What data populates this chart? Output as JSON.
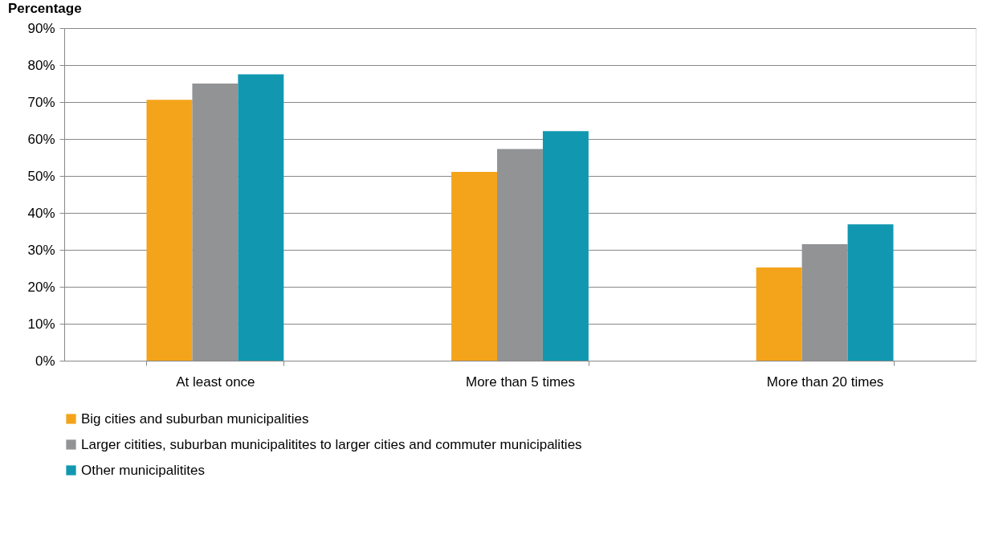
{
  "chart_data": {
    "type": "bar",
    "title": "Percentage",
    "categories": [
      "At least once",
      "More than 5 times",
      "More than 20 times"
    ],
    "series": [
      {
        "name": "Big cities and suburban municipalities",
        "color": "#f4a41a",
        "values": [
          70.6,
          51.1,
          25.2
        ]
      },
      {
        "name": "Larger citities, suburban municipalitites to larger cities and commuter municipalities",
        "color": "#929395",
        "values": [
          75,
          57.3,
          31.5
        ]
      },
      {
        "name": "Other municipalitites",
        "color": "#1198b0",
        "values": [
          77.5,
          62.1,
          36.9
        ]
      }
    ],
    "ylim": [
      0,
      90
    ],
    "yticks": [
      {
        "value": 0,
        "label": "0%"
      },
      {
        "value": 10,
        "label": "10%"
      },
      {
        "value": 20,
        "label": "20%"
      },
      {
        "value": 30,
        "label": "30%"
      },
      {
        "value": 40,
        "label": "40%"
      },
      {
        "value": 50,
        "label": "50%"
      },
      {
        "value": 60,
        "label": "60%"
      },
      {
        "value": 70,
        "label": "70%"
      },
      {
        "value": 80,
        "label": "80%"
      },
      {
        "value": 90,
        "label": "90%"
      }
    ],
    "grid": "y",
    "legend": "bottom"
  }
}
